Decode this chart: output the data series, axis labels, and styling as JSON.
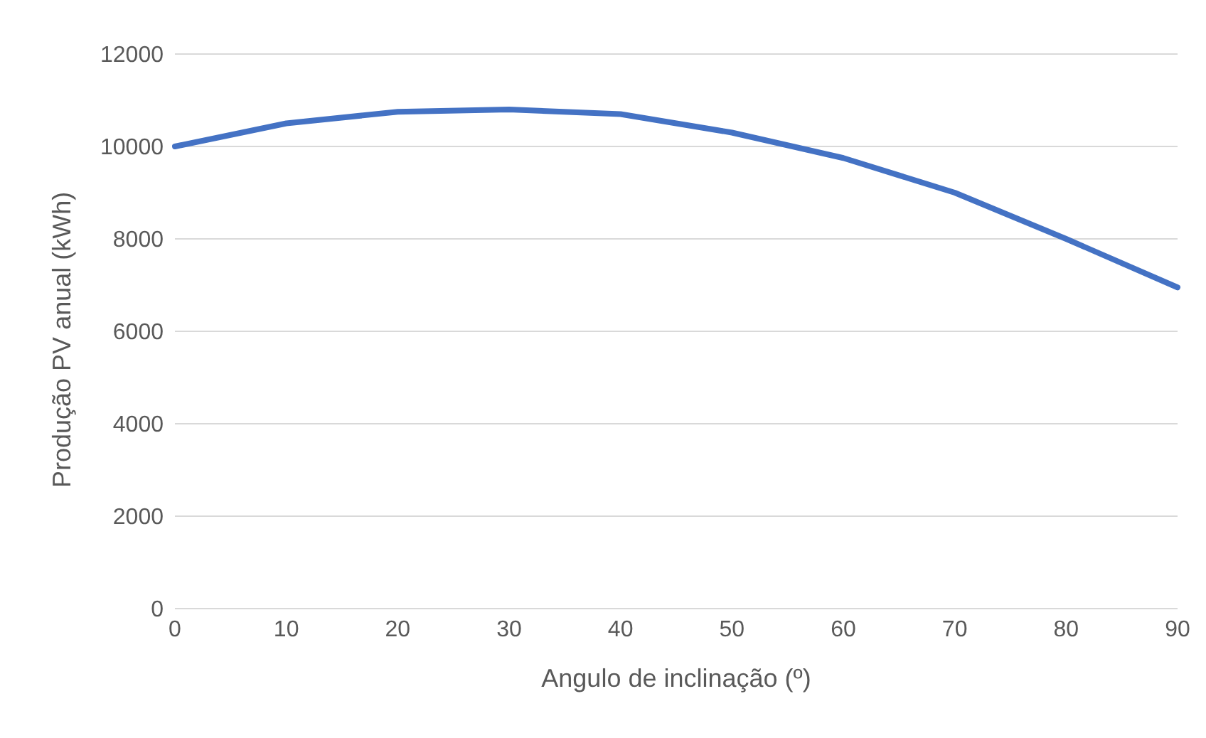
{
  "chart_data": {
    "type": "line",
    "xlabel": "Angulo de inclinação (º)",
    "ylabel": "Produção PV anual (kWh)",
    "categories": [
      "0",
      "10",
      "20",
      "30",
      "40",
      "50",
      "60",
      "70",
      "80",
      "90"
    ],
    "series": [
      {
        "color": "#4472c4",
        "values": [
          10000,
          10500,
          10750,
          10800,
          10700,
          10300,
          9750,
          9000,
          8000,
          6950
        ]
      }
    ],
    "ylim": [
      0,
      12000
    ],
    "yticks": [
      0,
      2000,
      4000,
      6000,
      8000,
      10000,
      12000
    ],
    "grid": "y",
    "legend": false,
    "marker": "none",
    "line_style": "solid"
  }
}
